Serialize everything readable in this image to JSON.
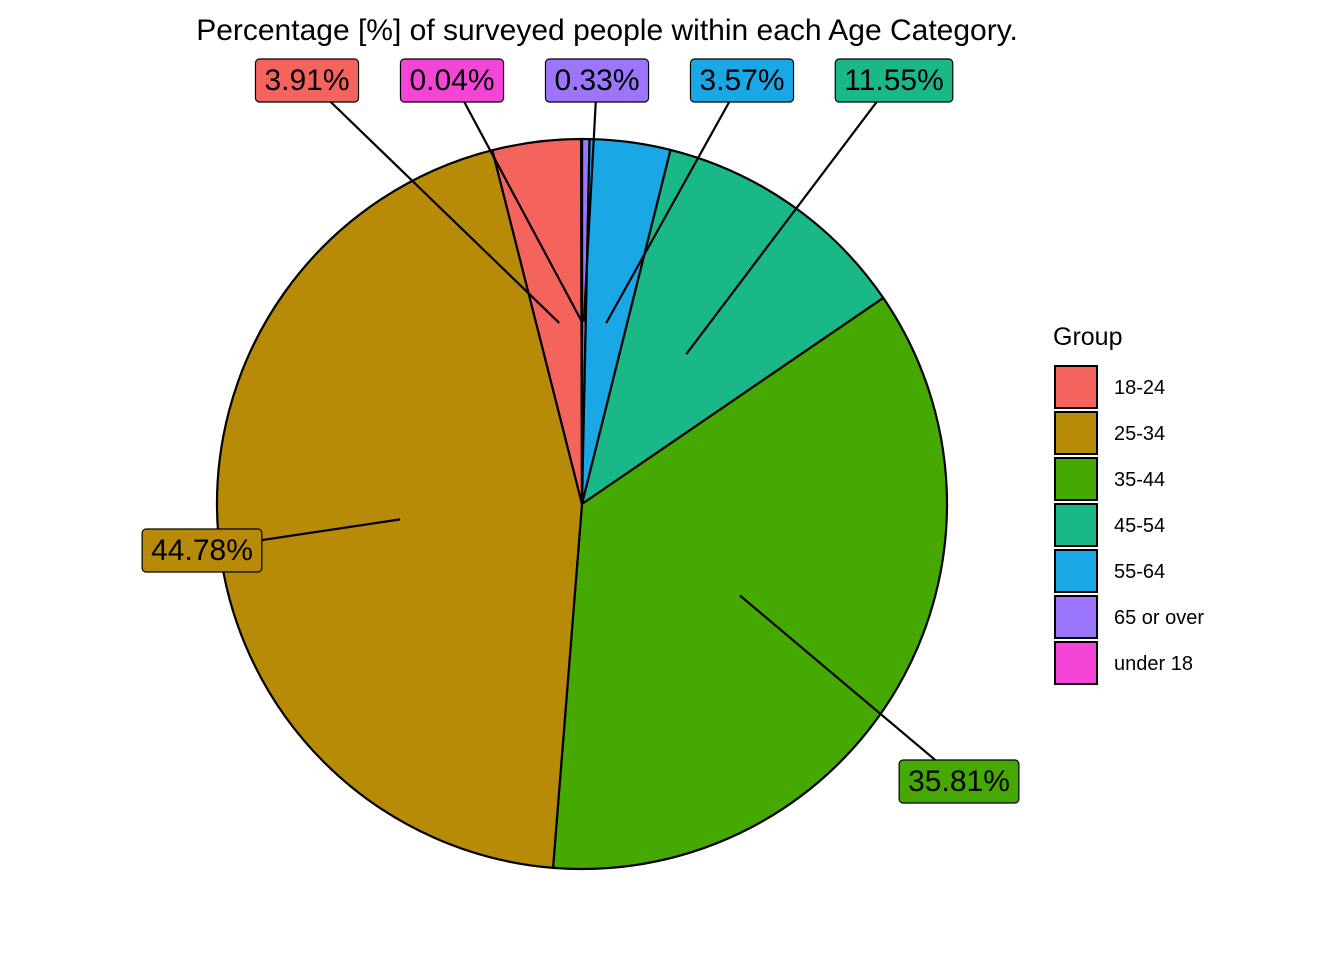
{
  "chart_data": {
    "type": "pie",
    "title": "Percentage [%] of surveyed people within each Age Category.",
    "legend": {
      "title": "Group",
      "position": "right"
    },
    "slices": [
      {
        "name": "65 or over",
        "value": 0.33,
        "label": "0.33%",
        "color": "#9B76FD"
      },
      {
        "name": "55-64",
        "value": 3.57,
        "label": "3.57%",
        "color": "#19A7E5"
      },
      {
        "name": "45-54",
        "value": 11.55,
        "label": "11.55%",
        "color": "#1AB888"
      },
      {
        "name": "35-44",
        "value": 35.81,
        "label": "35.81%",
        "color": "#46A902"
      },
      {
        "name": "25-34",
        "value": 44.78,
        "label": "44.78%",
        "color": "#B78A07"
      },
      {
        "name": "18-24",
        "value": 3.91,
        "label": "3.91%",
        "color": "#F4635C"
      },
      {
        "name": "under 18",
        "value": 0.04,
        "label": "0.04%",
        "color": "#F545D7"
      }
    ],
    "legend_order": [
      "18-24",
      "25-34",
      "35-44",
      "45-54",
      "55-64",
      "65 or over",
      "under 18"
    ]
  }
}
